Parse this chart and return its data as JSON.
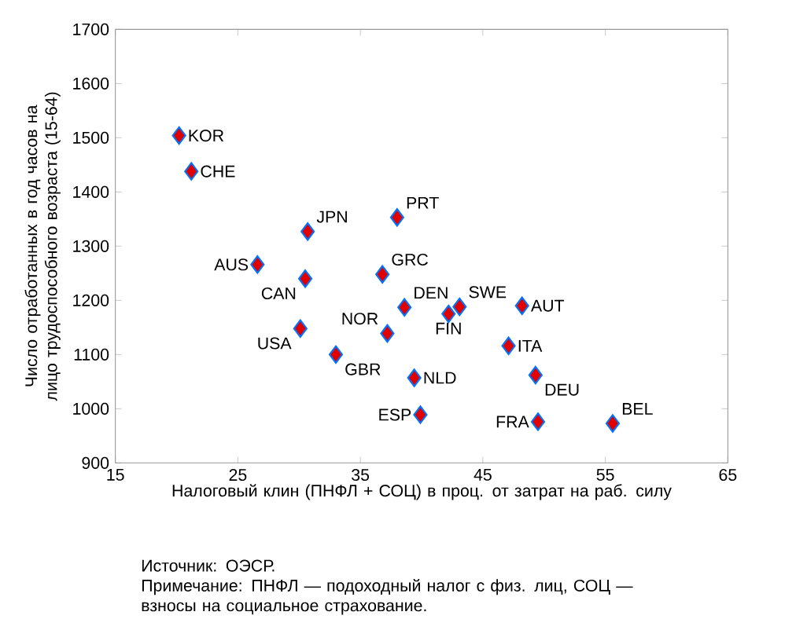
{
  "chart_data": {
    "type": "scatter",
    "xlabel": "Налоговый клин (ПНФЛ + СОЦ) в проц. от затрат на раб. силу",
    "ylabel": "Число отработанных  в год часов на лицо трудоспособного возраста (15-64)",
    "x": [
      20.2,
      21.2,
      30.7,
      38.0,
      26.6,
      30.5,
      36.8,
      38.6,
      37.2,
      30.1,
      33.0,
      39.4,
      39.9,
      42.2,
      43.1,
      48.2,
      47.1,
      49.3,
      49.5,
      55.6
    ],
    "series": [
      {
        "color": "#e00000",
        "values": [
          1504,
          1438,
          1327,
          1353,
          1266,
          1240,
          1248,
          1187,
          1139,
          1148,
          1100,
          1057,
          989,
          1175,
          1188,
          1190,
          1116,
          1062,
          976,
          973
        ]
      }
    ],
    "marker": "diamond",
    "xlim": [
      15,
      65
    ],
    "xticks": [
      15,
      25,
      35,
      45,
      55,
      65
    ],
    "ylim": [
      900,
      1700
    ],
    "yticks": [
      900,
      1000,
      1100,
      1200,
      1300,
      1400,
      1500,
      1600,
      1700
    ],
    "annotations": [
      {
        "text": "KOR",
        "x": 20.2,
        "y": 1504
      },
      {
        "text": "CHE",
        "x": 21.2,
        "y": 1438
      },
      {
        "text": "JPN",
        "x": 30.7,
        "y": 1327
      },
      {
        "text": "PRT",
        "x": 38.0,
        "y": 1353
      },
      {
        "text": "AUS",
        "x": 26.6,
        "y": 1266
      },
      {
        "text": "CAN",
        "x": 30.5,
        "y": 1240
      },
      {
        "text": "GRC",
        "x": 36.8,
        "y": 1248
      },
      {
        "text": "DEN",
        "x": 38.6,
        "y": 1187
      },
      {
        "text": "NOR",
        "x": 37.2,
        "y": 1139
      },
      {
        "text": "USA",
        "x": 30.1,
        "y": 1148
      },
      {
        "text": "GBR",
        "x": 33.0,
        "y": 1100
      },
      {
        "text": "NLD",
        "x": 39.4,
        "y": 1057
      },
      {
        "text": "ESP",
        "x": 39.9,
        "y": 989
      },
      {
        "text": "FIN",
        "x": 42.2,
        "y": 1175
      },
      {
        "text": "SWE",
        "x": 43.1,
        "y": 1188
      },
      {
        "text": "AUT",
        "x": 48.2,
        "y": 1190
      },
      {
        "text": "ITA",
        "x": 47.1,
        "y": 1116
      },
      {
        "text": "DEU",
        "x": 49.3,
        "y": 1062
      },
      {
        "text": "FRA",
        "x": 49.5,
        "y": 976
      },
      {
        "text": "BEL",
        "x": 55.6,
        "y": 973
      },
      "Источник: ОЭСР.",
      "Примечание: ПНФЛ — подоходный налог с физ. лиц, СОЦ — взносы на социальное страхование."
    ]
  }
}
